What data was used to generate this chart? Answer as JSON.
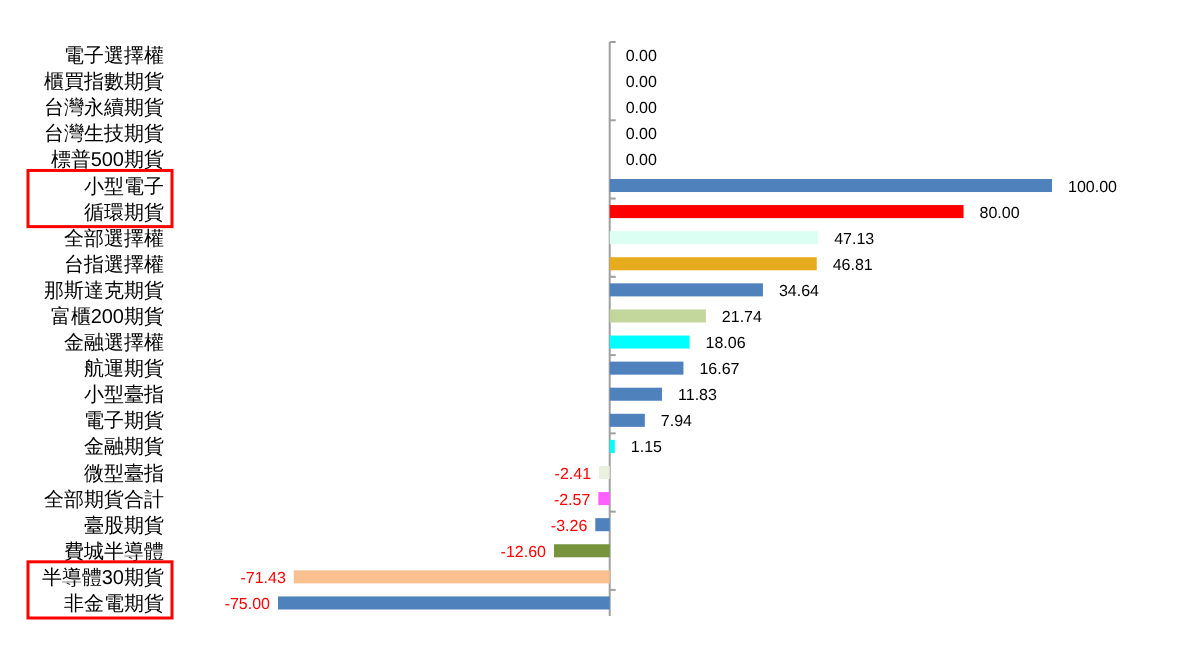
{
  "chart_data": {
    "type": "bar",
    "orientation": "horizontal",
    "tick_labels": "y",
    "value_labels": [
      "0.00",
      "0.00",
      "0.00",
      "0.00",
      "0.00",
      "100.00",
      "80.00",
      "47.13",
      "46.81",
      "34.64",
      "21.74",
      "18.06",
      "16.67",
      "11.83",
      "7.94",
      "1.15",
      "-2.41",
      "-2.57",
      "-3.26",
      "-12.60",
      "-71.43",
      "-75.00"
    ],
    "xlim": [
      -75,
      100
    ],
    "categories": [
      "電子選擇權",
      "櫃買指數期貨",
      "台灣永續期貨",
      "台灣生技期貨",
      "標普500期貨",
      "小型電子",
      "循環期貨",
      "全部選擇權",
      "台指選擇權",
      "那斯達克期貨",
      "富櫃200期貨",
      "金融選擇權",
      "航運期貨",
      "小型臺指",
      "電子期貨",
      "金融期貨",
      "微型臺指",
      "全部期貨合計",
      "臺股期貨",
      "費城半導體",
      "半導體30期貨",
      "非金電期貨"
    ],
    "values": [
      0.0,
      0.0,
      0.0,
      0.0,
      0.0,
      100.0,
      80.0,
      47.13,
      46.81,
      34.64,
      21.74,
      18.06,
      16.67,
      11.83,
      7.94,
      1.15,
      -2.41,
      -2.57,
      -3.26,
      -12.6,
      -71.43,
      -75.0
    ],
    "colors": [
      "#4f81bd",
      "#4f81bd",
      "#4f81bd",
      "#4f81bd",
      "#4f81bd",
      "#4f81bd",
      "#ff0000",
      "#dcfff4",
      "#e6ac1e",
      "#4f81bd",
      "#c3d69b",
      "#00ffff",
      "#4f81bd",
      "#4f81bd",
      "#4f81bd",
      "#00ffff",
      "#ebf1de",
      "#ff5fff",
      "#4f81bd",
      "#77933c",
      "#fac090",
      "#4f81bd"
    ]
  }
}
